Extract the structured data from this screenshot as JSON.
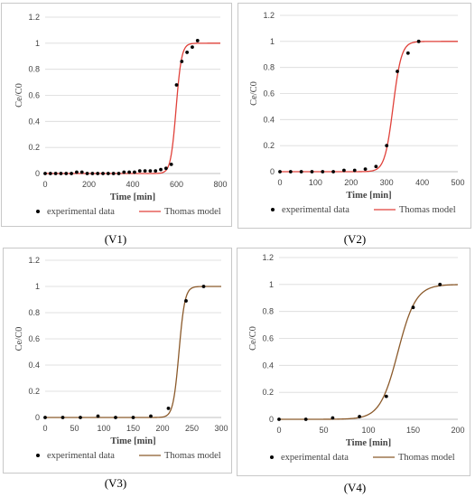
{
  "captions": [
    "(V1)",
    "(V2)",
    "(V3)",
    "(V4)"
  ],
  "chart_data": [
    {
      "type": "scatter",
      "caption": "(V1)",
      "xlabel": "Time [min]",
      "ylabel": "Ce/C0",
      "xlim": [
        0,
        800
      ],
      "ylim": [
        0,
        1.2
      ],
      "xticks": [
        0,
        200,
        400,
        600,
        800
      ],
      "yticks": [
        0,
        0.2,
        0.4,
        0.6,
        0.8,
        1,
        1.2
      ],
      "grid": "horizontal",
      "legend_position": "bottom",
      "model_color": "#e0413a",
      "series": [
        {
          "name": "experimental data",
          "kind": "markers",
          "color": "#000000",
          "x": [
            0,
            24,
            48,
            72,
            96,
            120,
            144,
            168,
            192,
            216,
            240,
            264,
            288,
            312,
            336,
            360,
            384,
            408,
            432,
            456,
            480,
            504,
            528,
            552,
            576,
            600,
            624,
            648,
            672,
            696
          ],
          "y": [
            0,
            0,
            0,
            0,
            0,
            0,
            0.01,
            0.01,
            0,
            0,
            0,
            0,
            0,
            0,
            0,
            0.01,
            0.01,
            0.01,
            0.02,
            0.02,
            0.02,
            0.02,
            0.03,
            0.04,
            0.07,
            0.68,
            0.86,
            0.93,
            0.97,
            1.02
          ]
        },
        {
          "name": "Thomas model",
          "kind": "line",
          "color": "#e0413a",
          "x0": 598,
          "k": 0.08
        }
      ]
    },
    {
      "type": "scatter",
      "caption": "(V2)",
      "xlabel": "Time [min]",
      "ylabel": "Ce/C0",
      "xlim": [
        0,
        500
      ],
      "ylim": [
        0,
        1.2
      ],
      "xticks": [
        0,
        100,
        200,
        300,
        400,
        500
      ],
      "yticks": [
        0,
        0.2,
        0.4,
        0.6,
        0.8,
        1,
        1.2
      ],
      "grid": "horizontal",
      "legend_position": "bottom",
      "model_color": "#e0413a",
      "series": [
        {
          "name": "experimental data",
          "kind": "markers",
          "color": "#000000",
          "x": [
            0,
            30,
            60,
            90,
            120,
            150,
            180,
            210,
            240,
            270,
            300,
            330,
            360,
            390
          ],
          "y": [
            0,
            0,
            0,
            0,
            0,
            0,
            0.01,
            0.01,
            0.02,
            0.04,
            0.2,
            0.77,
            0.91,
            1.0
          ]
        },
        {
          "name": "Thomas model",
          "kind": "line",
          "color": "#e0413a",
          "x0": 318,
          "k": 0.085
        }
      ]
    },
    {
      "type": "scatter",
      "caption": "(V3)",
      "xlabel": "Time [min]",
      "ylabel": "Ce/C0",
      "xlim": [
        0,
        300
      ],
      "ylim": [
        0,
        1.2
      ],
      "xticks": [
        0,
        50,
        100,
        150,
        200,
        250,
        300
      ],
      "yticks": [
        0,
        0.2,
        0.4,
        0.6,
        0.8,
        1,
        1.2
      ],
      "grid": "horizontal",
      "legend_position": "bottom",
      "model_color": "#8b5a2b",
      "series": [
        {
          "name": "experimental data",
          "kind": "markers",
          "color": "#000000",
          "x": [
            0,
            30,
            60,
            90,
            120,
            150,
            180,
            210,
            240,
            270
          ],
          "y": [
            0,
            0,
            0,
            0.01,
            0,
            0,
            0.01,
            0.07,
            0.89,
            1.0
          ]
        },
        {
          "name": "Thomas model",
          "kind": "line",
          "color": "#8b5a2b",
          "x0": 228,
          "k": 0.2
        }
      ]
    },
    {
      "type": "scatter",
      "caption": "(V4)",
      "xlabel": "Time [min]",
      "ylabel": "Ce/C0",
      "xlim": [
        0,
        200
      ],
      "ylim": [
        0,
        1.2
      ],
      "xticks": [
        0,
        50,
        100,
        150,
        200
      ],
      "yticks": [
        0,
        0.2,
        0.4,
        0.6,
        0.8,
        1,
        1.2
      ],
      "grid": "horizontal",
      "legend_position": "bottom",
      "model_color": "#8b5a2b",
      "series": [
        {
          "name": "experimental data",
          "kind": "markers",
          "color": "#000000",
          "x": [
            0,
            30,
            60,
            90,
            120,
            150,
            180
          ],
          "y": [
            0,
            0,
            0.01,
            0.02,
            0.17,
            0.83,
            1.0
          ]
        },
        {
          "name": "Thomas model",
          "kind": "line",
          "color": "#8b5a2b",
          "x0": 133,
          "k": 0.1
        }
      ]
    }
  ]
}
